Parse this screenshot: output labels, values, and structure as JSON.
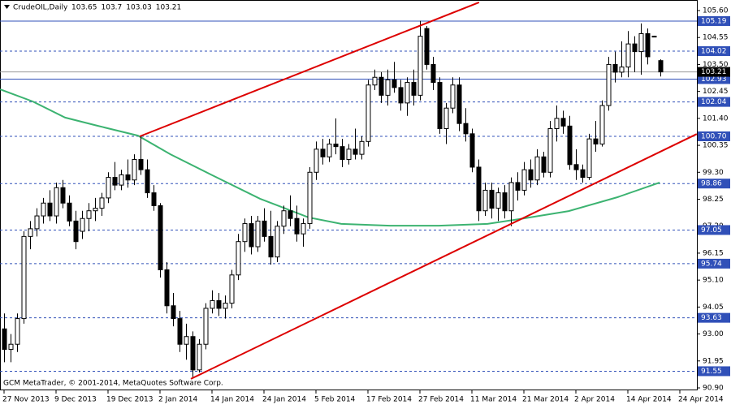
{
  "chart_data": {
    "type": "candlestick",
    "symbol": "CrudeOIL,Daily",
    "footer": "GCM MetaTrader, © 2001-2014, MetaQuotes Software Corp.",
    "categories": [
      "27 Nov 2013",
      null,
      null,
      null,
      null,
      null,
      null,
      null,
      "9 Dec 2013",
      null,
      null,
      null,
      null,
      null,
      null,
      null,
      "19 Dec 2013",
      null,
      null,
      null,
      null,
      null,
      null,
      null,
      "2 Jan 2014",
      null,
      null,
      null,
      null,
      null,
      null,
      null,
      "14 Jan 2014",
      null,
      null,
      null,
      null,
      null,
      null,
      null,
      "24 Jan 2014",
      null,
      null,
      null,
      null,
      null,
      null,
      null,
      "5 Feb 2014",
      null,
      null,
      null,
      null,
      null,
      null,
      null,
      "17 Feb 2014",
      null,
      null,
      null,
      null,
      null,
      null,
      null,
      "27 Feb 2014",
      null,
      null,
      null,
      null,
      null,
      null,
      null,
      "11 Mar 2014",
      null,
      null,
      null,
      null,
      null,
      null,
      null,
      "21 Mar 2014",
      null,
      null,
      null,
      null,
      null,
      null,
      null,
      "2 Apr 2014",
      null,
      null,
      null,
      null,
      null,
      null,
      null,
      "14 Apr 2014",
      null,
      null,
      null,
      null,
      null,
      null,
      null,
      "24 Apr 2014"
    ],
    "open": [
      93.2,
      92.4,
      92.6,
      93.6,
      96.8,
      97.1,
      97.6,
      98.1,
      97.6,
      98.7,
      98.1,
      97.4,
      97.0,
      97.5,
      97.8,
      97.9,
      98.3,
      99.1,
      98.8,
      99.2,
      99.0,
      99.8,
      99.4,
      98.5,
      98.0,
      95.5,
      94.1,
      93.6,
      92.6,
      92.9,
      91.6,
      92.6,
      94.0,
      94.3,
      94.0,
      94.2,
      95.3,
      96.6,
      97.3,
      96.4,
      97.4,
      96.8,
      96.0,
      97.2,
      97.8,
      97.5,
      96.9,
      97.3,
      99.3,
      100.2,
      99.9,
      100.4,
      100.3,
      99.8,
      100.2,
      100.0,
      100.5,
      102.7,
      103.0,
      102.3,
      102.9,
      102.6,
      102.0,
      102.8,
      102.3,
      104.9,
      103.5,
      102.8,
      101.0,
      101.8,
      102.7,
      101.2,
      100.8,
      99.5,
      97.8,
      98.6,
      97.9,
      98.5,
      97.8,
      98.9,
      98.6,
      99.4,
      99.0,
      99.9,
      99.3,
      101.0,
      101.4,
      101.1,
      99.6,
      99.4,
      99.1,
      100.6,
      100.4,
      101.9,
      103.5,
      103.2,
      103.4,
      104.3,
      104.0,
      104.7,
      104.6,
      103.65,
      null,
      null,
      null
    ],
    "high": [
      93.8,
      93.0,
      93.8,
      97.0,
      97.4,
      97.9,
      98.3,
      98.6,
      98.9,
      99.0,
      98.4,
      97.8,
      97.8,
      98.1,
      98.3,
      98.5,
      99.3,
      99.7,
      99.4,
      99.8,
      100.0,
      100.7,
      99.8,
      98.8,
      98.1,
      95.8,
      94.6,
      93.9,
      93.4,
      93.1,
      92.8,
      94.2,
      94.7,
      94.6,
      94.5,
      95.5,
      96.9,
      97.5,
      97.6,
      97.6,
      97.9,
      97.8,
      97.4,
      98.0,
      98.4,
      98.0,
      97.5,
      99.5,
      100.5,
      100.6,
      100.6,
      101.4,
      100.6,
      100.4,
      101.0,
      100.7,
      102.9,
      103.3,
      103.2,
      103.3,
      103.6,
      102.9,
      103.0,
      103.3,
      105.2,
      105.0,
      103.8,
      103.0,
      102.0,
      103.0,
      103.0,
      101.8,
      101.0,
      99.8,
      98.9,
      98.9,
      98.7,
      98.8,
      99.1,
      99.3,
      99.7,
      99.8,
      100.2,
      100.1,
      101.3,
      101.9,
      101.7,
      101.5,
      100.2,
      99.6,
      100.8,
      101.3,
      102.1,
      103.8,
      104.0,
      104.4,
      104.8,
      104.6,
      105.1,
      104.9,
      104.62,
      103.7,
      null,
      null,
      null
    ],
    "low": [
      91.9,
      91.9,
      92.3,
      93.4,
      96.3,
      96.8,
      97.3,
      97.4,
      97.3,
      97.9,
      97.2,
      96.3,
      96.7,
      97.0,
      97.4,
      97.6,
      98.1,
      98.6,
      98.6,
      98.7,
      98.8,
      99.2,
      98.3,
      97.8,
      95.2,
      93.8,
      93.3,
      92.3,
      92.0,
      91.3,
      91.5,
      92.4,
      93.8,
      93.7,
      93.6,
      94.0,
      95.1,
      96.2,
      96.1,
      96.2,
      96.6,
      95.7,
      95.8,
      96.9,
      97.2,
      96.6,
      96.4,
      97.1,
      99.0,
      99.6,
      99.7,
      100.0,
      99.5,
      99.6,
      99.8,
      99.8,
      100.3,
      102.5,
      102.0,
      101.9,
      102.4,
      101.7,
      101.5,
      101.9,
      102.1,
      103.3,
      102.5,
      100.8,
      100.4,
      101.6,
      100.9,
      100.5,
      99.3,
      97.4,
      97.6,
      97.5,
      97.4,
      97.5,
      97.2,
      98.2,
      98.4,
      98.7,
      98.8,
      99.1,
      99.1,
      100.5,
      100.8,
      99.4,
      99.0,
      98.9,
      99.0,
      100.1,
      100.3,
      101.7,
      102.8,
      103.0,
      103.0,
      103.2,
      103.1,
      103.5,
      104.58,
      103.03,
      null,
      null,
      null
    ],
    "close": [
      92.4,
      92.6,
      93.6,
      96.8,
      97.1,
      97.6,
      98.1,
      97.6,
      98.7,
      98.1,
      97.4,
      96.6,
      97.5,
      97.8,
      97.9,
      98.3,
      99.1,
      98.8,
      99.2,
      99.0,
      99.8,
      99.4,
      98.5,
      98.0,
      95.5,
      94.1,
      93.6,
      92.6,
      92.9,
      91.6,
      92.6,
      94.0,
      94.3,
      94.0,
      94.2,
      95.3,
      96.6,
      97.3,
      96.4,
      97.4,
      96.8,
      96.0,
      97.2,
      97.8,
      97.5,
      96.9,
      97.3,
      99.3,
      100.2,
      99.9,
      100.4,
      100.3,
      99.8,
      100.2,
      100.0,
      100.5,
      102.7,
      103.0,
      102.3,
      102.9,
      102.6,
      102.0,
      102.8,
      102.3,
      104.6,
      103.5,
      102.8,
      101.0,
      101.8,
      102.7,
      101.2,
      100.8,
      99.5,
      97.8,
      98.6,
      97.9,
      98.5,
      97.8,
      98.9,
      98.6,
      99.4,
      99.0,
      99.9,
      99.3,
      101.0,
      101.4,
      101.1,
      99.6,
      99.4,
      99.1,
      100.6,
      100.4,
      101.9,
      103.5,
      103.2,
      103.4,
      104.3,
      104.0,
      104.7,
      103.8,
      104.6,
      103.21,
      null,
      null,
      null
    ],
    "ylim": [
      90.9,
      105.6
    ],
    "yticks": [
      {
        "value": 105.6,
        "label": "105.60"
      },
      104.55,
      {
        "value": 103.5,
        "label": "103.50"
      },
      102.45,
      {
        "value": 101.4,
        "label": "101.40"
      },
      100.35,
      {
        "value": 99.3,
        "label": "99.30"
      },
      98.25,
      {
        "value": 97.2,
        "label": "97.20"
      },
      96.15,
      {
        "value": 95.1,
        "label": "95.10"
      },
      94.05,
      {
        "value": 93.0,
        "label": "93.00"
      },
      91.95,
      {
        "value": 90.9,
        "label": "90.90"
      }
    ],
    "levels": [
      {
        "value": 105.19,
        "style": "solid"
      },
      {
        "value": 104.02,
        "style": "dashed"
      },
      {
        "value": 102.93,
        "style": "solid"
      },
      {
        "value": 102.04,
        "style": "dashed"
      },
      {
        "value": 100.7,
        "label": "100.70",
        "style": "dashed"
      },
      {
        "value": 98.86,
        "style": "dashed"
      },
      {
        "value": 97.05,
        "style": "dashed"
      },
      {
        "value": 95.74,
        "style": "dashed"
      },
      {
        "value": 93.63,
        "style": "dashed"
      },
      {
        "value": 91.55,
        "style": "dashed"
      }
    ],
    "level_color": "#3050b8",
    "ma": {
      "color": "#3cb371",
      "x": [
        -0.6,
        4.4,
        9.4,
        14.4,
        20.6,
        25.6,
        31.9,
        39.4,
        46.9,
        51.9,
        59.4,
        66.9,
        74.4,
        79.4,
        86.9,
        94.4,
        100.9
      ],
      "values": [
        102.53,
        102.06,
        101.43,
        101.11,
        100.73,
        100.0,
        99.2,
        98.27,
        97.54,
        97.29,
        97.22,
        97.22,
        97.29,
        97.48,
        97.79,
        98.33,
        98.9
      ]
    },
    "trendlines": [
      {
        "color": "#dd0000",
        "x": [
          20.9,
          73.1
        ],
        "values": [
          100.7,
          105.92
        ]
      },
      {
        "color": "#dd0000",
        "x": [
          28.75,
          106.6
        ],
        "values": [
          91.25,
          100.79
        ]
      }
    ]
  }
}
